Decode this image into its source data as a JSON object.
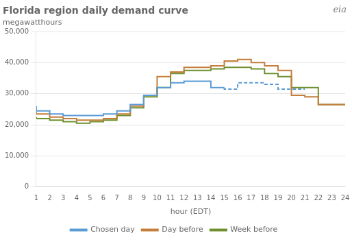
{
  "chart_data": {
    "type": "step",
    "title": "Florida region daily demand curve",
    "subtitle": "megawatthours",
    "xlabel": "hour (EDT)",
    "annotations": [
      "eia"
    ],
    "x": [
      1,
      2,
      3,
      4,
      5,
      6,
      7,
      8,
      9,
      10,
      11,
      12,
      13,
      14,
      15,
      16,
      17,
      18,
      19,
      20,
      21,
      22,
      23,
      24
    ],
    "series": [
      {
        "name": "Chosen day",
        "color": "#5b9bd5",
        "line_style": "solid",
        "values": [
          26000,
          24500,
          23500,
          23000,
          23000,
          23000,
          23500,
          24500,
          26500,
          29500,
          32000,
          33500,
          34000,
          34000,
          32000,
          null,
          null,
          null,
          null,
          null,
          null,
          null,
          null,
          null
        ]
      },
      {
        "name": "Chosen day",
        "color": "#5b9bd5",
        "line_style": "dashed",
        "values": [
          null,
          null,
          null,
          null,
          null,
          null,
          null,
          null,
          null,
          null,
          null,
          null,
          null,
          null,
          32000,
          31500,
          33500,
          33500,
          33000,
          31500,
          31500,
          null,
          null,
          null
        ]
      },
      {
        "name": "Day before",
        "color": "#c47d3a",
        "line_style": "solid",
        "values": [
          24500,
          23500,
          22500,
          22000,
          21500,
          21500,
          22000,
          23500,
          26000,
          29500,
          35500,
          37000,
          38500,
          38500,
          39000,
          40500,
          41000,
          40000,
          39000,
          37500,
          29500,
          29000,
          26500,
          26500
        ]
      },
      {
        "name": "Week before",
        "color": "#6e8f2e",
        "line_style": "solid",
        "values": [
          22500,
          22000,
          21500,
          21000,
          20500,
          21000,
          21500,
          23000,
          25500,
          29000,
          32000,
          36500,
          37500,
          37500,
          38000,
          38500,
          38500,
          38000,
          36500,
          35500,
          32000,
          32000,
          26500,
          26500
        ]
      }
    ],
    "xlim": [
      1,
      24
    ],
    "xticks": [
      1,
      2,
      3,
      4,
      5,
      6,
      7,
      8,
      9,
      10,
      11,
      12,
      13,
      14,
      15,
      16,
      17,
      18,
      19,
      20,
      21,
      22,
      23,
      24
    ],
    "ylim": [
      0,
      50000
    ],
    "yticks": [
      0,
      {
        "value": 10000,
        "label": "10,000"
      },
      {
        "value": 20000,
        "label": "20,000"
      },
      {
        "value": 30000,
        "label": "30,000"
      },
      {
        "value": 40000,
        "label": "40,000"
      },
      {
        "value": 50000,
        "label": "50,000"
      }
    ],
    "grid": "y",
    "legend": "bottom"
  }
}
